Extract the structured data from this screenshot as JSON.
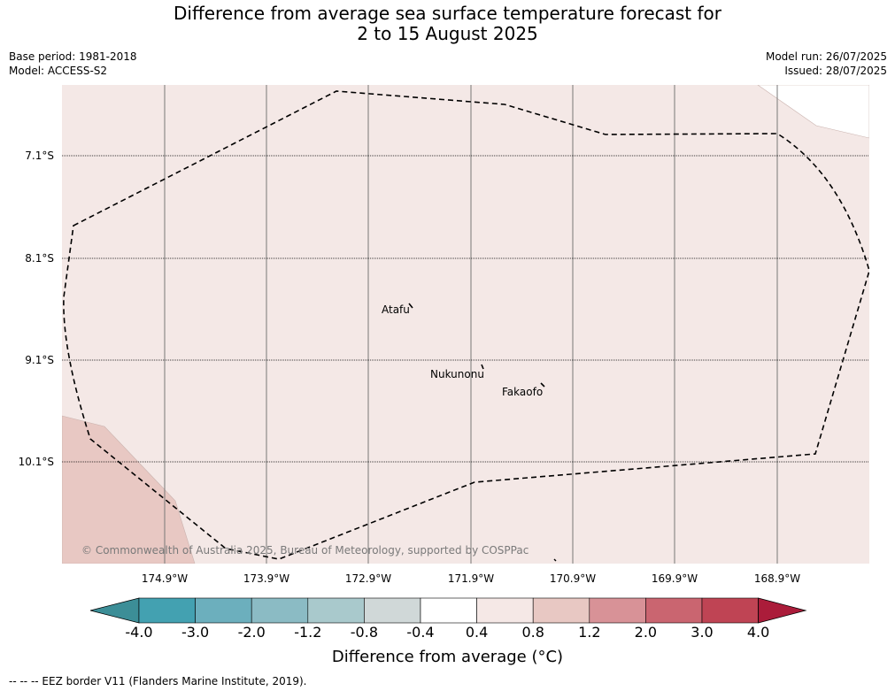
{
  "title": {
    "line1": "Difference from average sea surface temperature forecast for",
    "line2": "2 to 15 August 2025"
  },
  "meta": {
    "base_period": "Base period: 1981-2018",
    "model": "Model: ACCESS-S2",
    "model_run": "Model run: 26/07/2025",
    "issued": "Issued: 28/07/2025"
  },
  "map": {
    "latitudes": [
      "7.1°S",
      "8.1°S",
      "9.1°S",
      "10.1°S"
    ],
    "longitudes": [
      "174.9°W",
      "173.9°W",
      "172.9°W",
      "171.9°W",
      "170.9°W",
      "169.9°W",
      "168.9°W"
    ],
    "places": [
      "Atafu",
      "Nukunonu",
      "Fakaofo"
    ],
    "copyright": "© Commonwealth of Australia 2025, Bureau of Meteorology, supported by COSPPac",
    "colors": {
      "background_anomaly": "#f4e8e6",
      "warm_patch": "#e8c8c3"
    }
  },
  "colorbar": {
    "ticks": [
      "-4.0",
      "-3.0",
      "-2.0",
      "-1.2",
      "-0.8",
      "-0.4",
      "0.4",
      "0.8",
      "1.2",
      "2.0",
      "3.0",
      "4.0"
    ],
    "colors": [
      "#3c8e97",
      "#43a1b1",
      "#6cafbd",
      "#8bbbc4",
      "#a9c9cc",
      "#d0d8d8",
      "#ffffff",
      "#f5e8e6",
      "#e8c8c3",
      "#d89297",
      "#ca6570",
      "#bf4454",
      "#ab1c3a"
    ],
    "label": "Difference from average (°C)"
  },
  "footer": "--  --  -- EEZ border V11 (Flanders Marine Institute, 2019)."
}
